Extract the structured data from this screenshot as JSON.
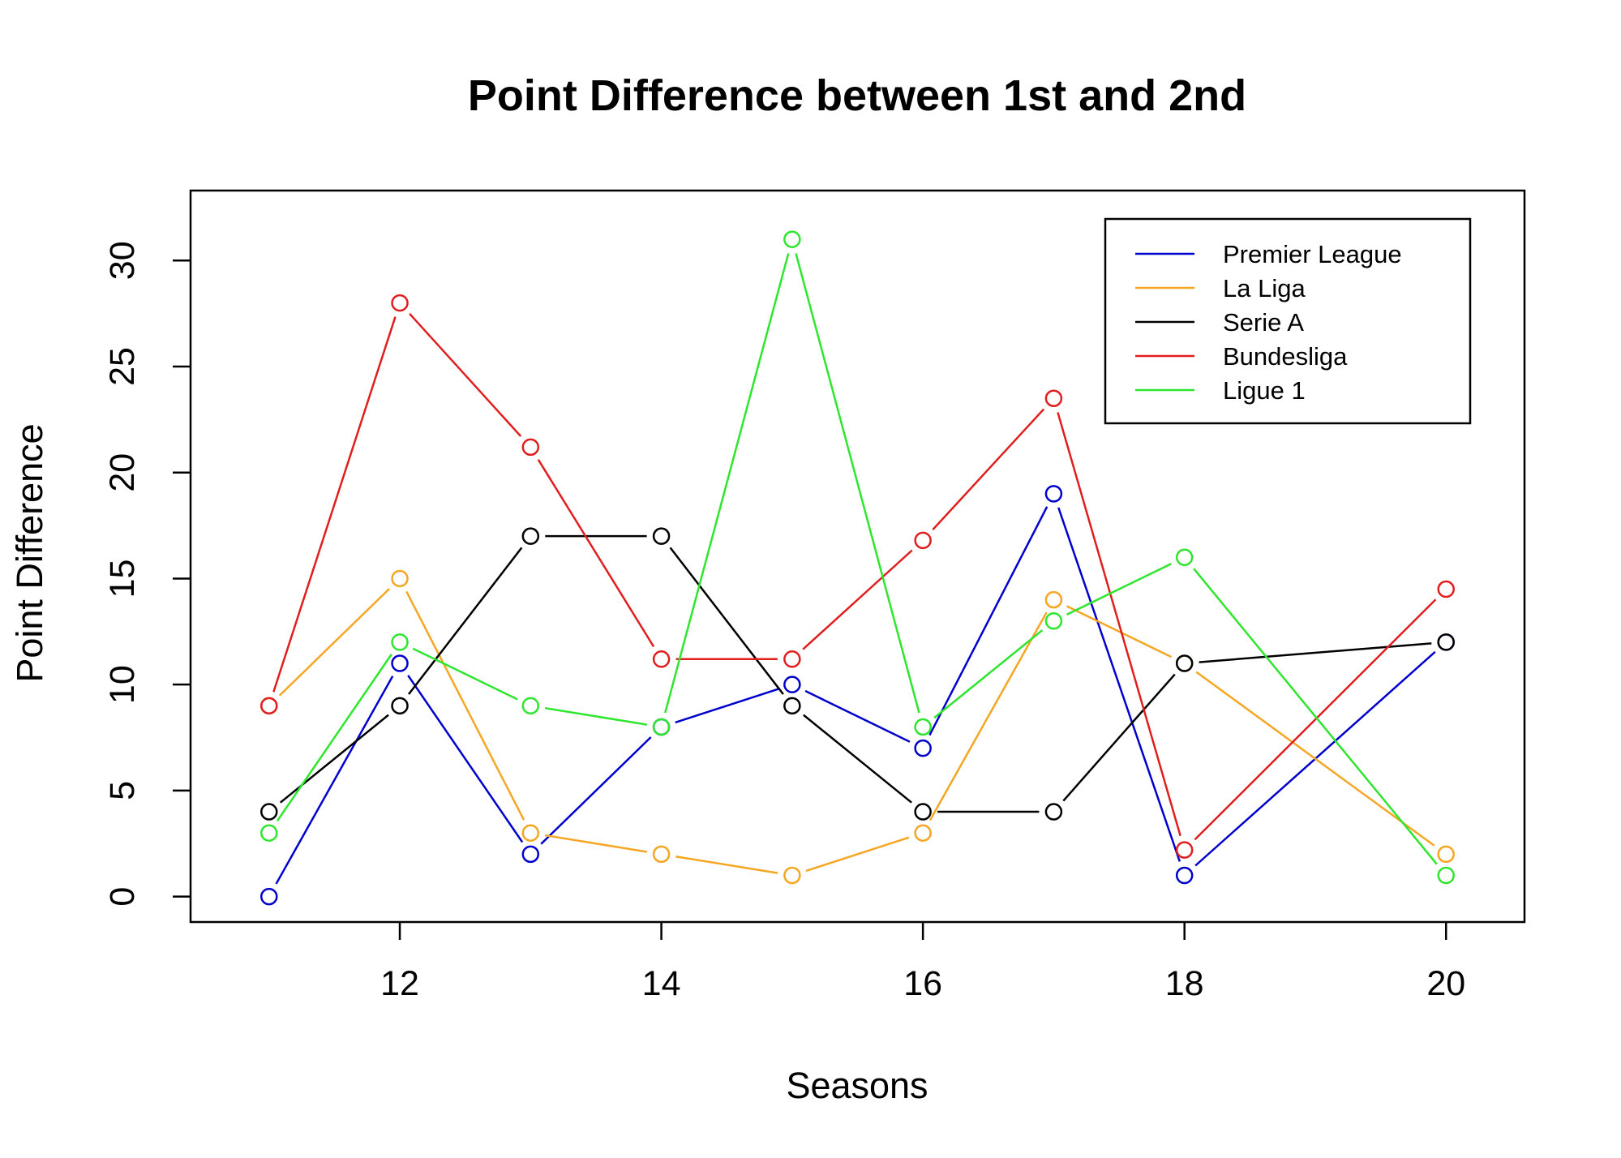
{
  "chart_data": {
    "type": "line",
    "title": "Point Difference between 1st and 2nd",
    "xlabel": "Seasons",
    "ylabel": "Point Difference",
    "x": [
      11,
      12,
      13,
      14,
      15,
      16,
      17,
      18,
      20
    ],
    "xlim": [
      10.4,
      20.6
    ],
    "ylim": [
      -1.2,
      33.3
    ],
    "x_ticks": [
      12,
      14,
      16,
      18,
      20
    ],
    "y_ticks": [
      0,
      5,
      10,
      15,
      20,
      25,
      30
    ],
    "grid": false,
    "legend_position": "top-right",
    "markers": "open-circle",
    "series": [
      {
        "name": "Premier League",
        "color": "#0000CD",
        "values": [
          0,
          11,
          2,
          8,
          10,
          7,
          19,
          1,
          12
        ]
      },
      {
        "name": "La Liga",
        "color": "#F5A623",
        "values": [
          9,
          15,
          3,
          2,
          1,
          3,
          14,
          11,
          2
        ]
      },
      {
        "name": "Serie A",
        "color": "#000000",
        "values": [
          4,
          9,
          17,
          17,
          9,
          4,
          4,
          11,
          12
        ]
      },
      {
        "name": "Bundesliga",
        "color": "#E01E1E",
        "values": [
          9,
          28,
          21.2,
          11.2,
          11.2,
          16.8,
          23.5,
          2.2,
          14.5
        ]
      },
      {
        "name": "Ligue 1",
        "color": "#2EE62E",
        "values": [
          3,
          12,
          9,
          8,
          31,
          8,
          13,
          16,
          1
        ]
      }
    ]
  }
}
